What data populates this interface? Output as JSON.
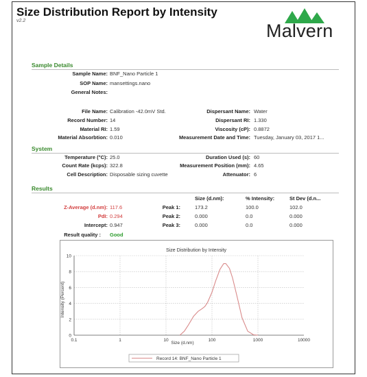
{
  "header": {
    "title": "Size Distribution Report by Intensity",
    "version": "v2.2",
    "brand": "Malvern",
    "brand_color": "#2ea84a"
  },
  "sample": {
    "section_title": "Sample Details",
    "sample_name_label": "Sample Name:",
    "sample_name": "BNF_Nano Particle 1",
    "sop_label": "SOP Name:",
    "sop": "mansettings.nano",
    "notes_label": "General Notes:",
    "file_label": "File Name:",
    "file": "Calibration -42.0mV Std.",
    "record_label": "Record Number:",
    "record": "14",
    "material_ri_label": "Material RI:",
    "material_ri": "1.59",
    "material_abs_label": "Material Absorbtion:",
    "material_abs": "0.010",
    "dispersant_name_label": "Dispersant Name:",
    "dispersant_name": "Water",
    "dispersant_ri_label": "Dispersant RI:",
    "dispersant_ri": "1.330",
    "viscosity_label": "Viscosity (cP):",
    "viscosity": "0.8872",
    "measurement_date_label": "Measurement Date and Time:",
    "measurement_date": "Tuesday, January 03, 2017 1..."
  },
  "system": {
    "section_title": "System",
    "temperature_label": "Temperature (°C):",
    "temperature": "25.0",
    "count_rate_label": "Count Rate (kcps):",
    "count_rate": "322.8",
    "cell_label": "Cell Description:",
    "cell": "Disposable sizing cuvette",
    "duration_label": "Duration Used (s):",
    "duration": "60",
    "position_label": "Measurement Position (mm):",
    "position": "4.65",
    "attenuator_label": "Attenuator:",
    "attenuator": "6"
  },
  "results": {
    "section_title": "Results",
    "zavg_label": "Z-Average (d.nm):",
    "zavg": "117.6",
    "pdi_label": "PdI:",
    "pdi": "0.294",
    "intercept_label": "Intercept:",
    "intercept": "0.947",
    "quality_label": "Result quality :",
    "quality": "Good",
    "col_size": "Size (d.nm):",
    "col_intensity": "% Intensity:",
    "col_stdev": "St Dev (d.n...",
    "peaks": [
      {
        "label": "Peak 1:",
        "size": "173.2",
        "intensity": "100.0",
        "stdev": "102.0"
      },
      {
        "label": "Peak 2:",
        "size": "0.000",
        "intensity": "0.0",
        "stdev": "0.000"
      },
      {
        "label": "Peak 3:",
        "size": "0.000",
        "intensity": "0.0",
        "stdev": "0.000"
      }
    ]
  },
  "chart_data": {
    "type": "line",
    "title": "Size Distribution by Intensity",
    "xlabel": "Size (d.nm)",
    "ylabel": "Intensity (Percent)",
    "x_scale": "log",
    "xlim": [
      0.1,
      10000
    ],
    "ylim": [
      0,
      10
    ],
    "x_ticks": [
      "0.1",
      "1",
      "10",
      "100",
      "1000",
      "10000"
    ],
    "y_ticks": [
      "0",
      "2",
      "4",
      "6",
      "8",
      "10"
    ],
    "grid": true,
    "legend": "bottom",
    "series": [
      {
        "name": "Record 14: BNF_Nano Particle 1",
        "color": "#d98a8a",
        "x": [
          20,
          25,
          30,
          40,
          50,
          60,
          70,
          80,
          100,
          120,
          150,
          180,
          200,
          240,
          280,
          350,
          450,
          600,
          800,
          1000
        ],
        "y": [
          0,
          0.5,
          1.2,
          2.4,
          3.0,
          3.3,
          3.6,
          4.1,
          5.4,
          6.8,
          8.3,
          9.0,
          9.0,
          8.4,
          7.2,
          4.9,
          2.2,
          0.5,
          0.05,
          0
        ]
      }
    ]
  }
}
